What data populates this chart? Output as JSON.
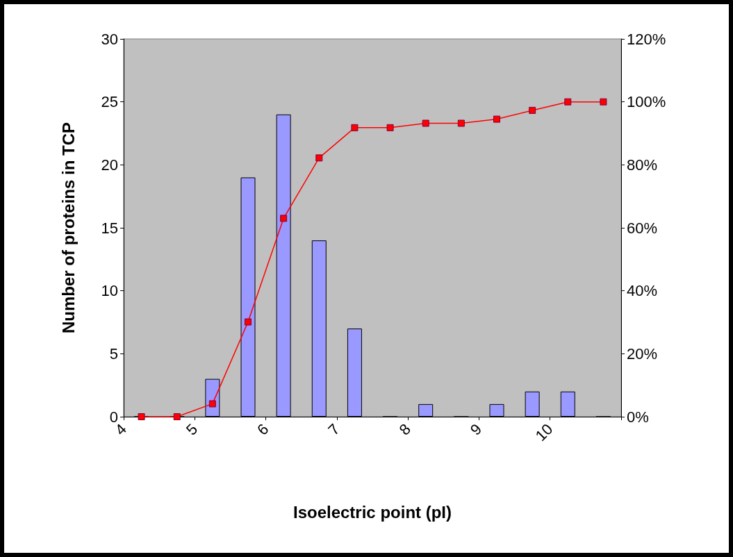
{
  "chart_data": {
    "type": "bar",
    "xlabel": "Isoelectric point (pI)",
    "ylabel": "Number of proteins in TCP",
    "x": [
      4.25,
      4.75,
      5.25,
      5.75,
      6.25,
      6.75,
      7.25,
      7.75,
      8.25,
      8.75,
      9.25,
      9.75,
      10.25,
      10.75
    ],
    "series": [
      {
        "color": "#9999ff",
        "values": [
          0,
          0,
          3,
          19,
          24,
          14,
          7,
          0,
          1,
          0,
          1,
          2,
          2,
          0
        ]
      },
      {
        "type": "line",
        "axis": "y2",
        "color": "#ff0000",
        "values": [
          0,
          0,
          4.1,
          30.1,
          63,
          82.2,
          91.8,
          91.8,
          93.2,
          93.2,
          94.5,
          97.3,
          100,
          100
        ]
      }
    ],
    "xlim": [
      4,
      11
    ],
    "xticks": [
      4,
      5,
      6,
      7,
      8,
      9,
      10,
      {
        "value": 11,
        "label": null
      }
    ],
    "ylim": [
      0,
      30
    ],
    "yticks": [
      0,
      5,
      10,
      15,
      20,
      25,
      30
    ],
    "y2lim": [
      0,
      120
    ],
    "y2ticks": [
      {
        "value": 0,
        "label": "0%"
      },
      {
        "value": 20,
        "label": "20%"
      },
      {
        "value": 40,
        "label": "40%"
      },
      {
        "value": 60,
        "label": "60%"
      },
      {
        "value": 80,
        "label": "80%"
      },
      {
        "value": 100,
        "label": "100%"
      },
      {
        "value": 120,
        "label": "120%"
      }
    ],
    "grid": false,
    "marker": "square",
    "line_style": "solid"
  }
}
